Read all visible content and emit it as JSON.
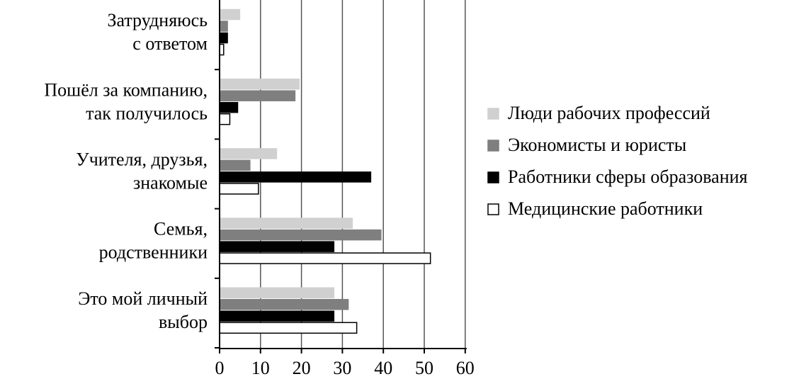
{
  "chart_data": {
    "type": "bar",
    "orientation": "horizontal",
    "title": "",
    "xlabel": "",
    "ylabel": "",
    "xlim": [
      0,
      60
    ],
    "xticks": [
      0,
      10,
      20,
      30,
      40,
      50,
      60
    ],
    "grid": "vertical",
    "legend_position": "right",
    "categories": [
      {
        "lines": [
          "Затрудняюсь",
          "с ответом"
        ]
      },
      {
        "lines": [
          "Пошёл за компанию,",
          "так получилось"
        ]
      },
      {
        "lines": [
          "Учителя, друзья,",
          "знакомые"
        ]
      },
      {
        "lines": [
          "Семья,",
          "родственники"
        ]
      },
      {
        "lines": [
          "Это мой личный",
          "выбор"
        ]
      }
    ],
    "series": [
      {
        "name": "Люди рабочих профессий",
        "color": "#d0d0d0",
        "stroke": "#d0d0d0",
        "values": [
          5,
          19.5,
          14,
          32.5,
          28
        ]
      },
      {
        "name": "Экономисты и юристы",
        "color": "#7f7f7f",
        "stroke": "#7f7f7f",
        "values": [
          2,
          18.5,
          7.5,
          39.5,
          31.5
        ]
      },
      {
        "name": "Работники сферы образования",
        "color": "#000000",
        "stroke": "#000000",
        "values": [
          2,
          4.5,
          37,
          28,
          28
        ]
      },
      {
        "name": "Медицинские работники",
        "color": "#ffffff",
        "stroke": "#000000",
        "values": [
          1,
          2.5,
          9.5,
          51.5,
          33.5
        ]
      }
    ]
  }
}
